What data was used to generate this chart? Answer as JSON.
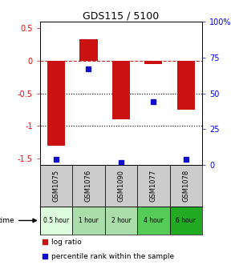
{
  "title": "GDS115 / 5100",
  "samples": [
    "GSM1075",
    "GSM1076",
    "GSM1090",
    "GSM1077",
    "GSM1078"
  ],
  "time_labels": [
    "0.5 hour",
    "1 hour",
    "2 hour",
    "4 hour",
    "6 hour"
  ],
  "time_colors": [
    "#ddfedd",
    "#aaddaa",
    "#aaddaa",
    "#55cc55",
    "#22aa22"
  ],
  "log_ratios": [
    -1.3,
    0.33,
    -0.9,
    -0.05,
    -0.75
  ],
  "percentiles": [
    0.04,
    0.67,
    0.02,
    0.44,
    0.04
  ],
  "bar_color": "#cc1111",
  "dot_color": "#1111cc",
  "ylim": [
    -1.6,
    0.6
  ],
  "y_left_ticks": [
    0.5,
    0.0,
    -0.5,
    -1.0,
    -1.5
  ],
  "y_right_ticks": [
    100,
    75,
    50,
    25,
    0
  ],
  "hline_y": [
    0,
    -0.5,
    -1.0
  ],
  "hline_styles": [
    "--",
    ":",
    ":"
  ],
  "hline_colors": [
    "#cc2222",
    "black",
    "black"
  ],
  "bar_width": 0.55
}
